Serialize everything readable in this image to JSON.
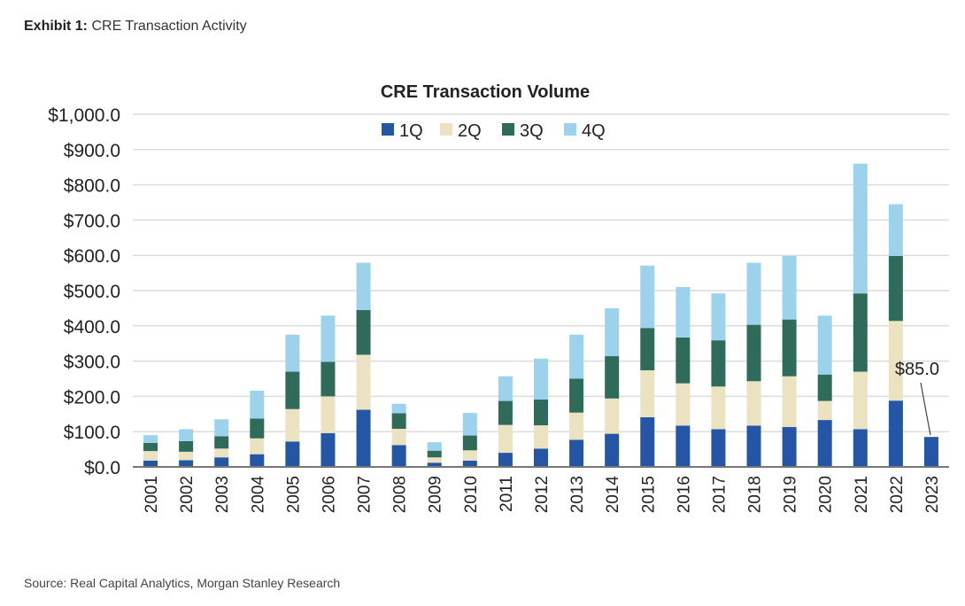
{
  "exhibit": {
    "label": "Exhibit 1:",
    "title": "CRE Transaction Activity"
  },
  "source": "Source: Real Capital Analytics, Morgan Stanley Research",
  "chart_data": {
    "type": "bar",
    "stacked": true,
    "title": "CRE Transaction Volume",
    "xlabel": "",
    "ylabel": "",
    "ylim": [
      0,
      1000
    ],
    "yticks": [
      0,
      100,
      200,
      300,
      400,
      500,
      600,
      700,
      800,
      900,
      1000
    ],
    "ytick_labels": [
      "$0.0",
      "$100.0",
      "$200.0",
      "$300.0",
      "$400.0",
      "$500.0",
      "$600.0",
      "$700.0",
      "$800.0",
      "$900.0",
      "$1,000.0"
    ],
    "grid": true,
    "legend": "top-center",
    "categories": [
      "2001",
      "2002",
      "2003",
      "2004",
      "2005",
      "2006",
      "2007",
      "2008",
      "2009",
      "2010",
      "2011",
      "2012",
      "2013",
      "2014",
      "2015",
      "2016",
      "2017",
      "2018",
      "2019",
      "2020",
      "2021",
      "2022",
      "2023"
    ],
    "series": [
      {
        "name": "1Q",
        "color": "#2456a6",
        "values": [
          18,
          19,
          27,
          36,
          72,
          96,
          162,
          62,
          12,
          18,
          40,
          52,
          77,
          94,
          141,
          117,
          107,
          117,
          113,
          133,
          107,
          188,
          85
        ]
      },
      {
        "name": "2Q",
        "color": "#ebe2c2",
        "values": [
          27,
          24,
          25,
          45,
          92,
          104,
          156,
          46,
          15,
          29,
          79,
          66,
          77,
          100,
          133,
          120,
          121,
          126,
          144,
          54,
          163,
          226,
          0
        ]
      },
      {
        "name": "3Q",
        "color": "#2f6b5a",
        "values": [
          23,
          30,
          35,
          56,
          106,
          98,
          127,
          44,
          19,
          42,
          68,
          73,
          96,
          120,
          120,
          130,
          131,
          160,
          161,
          75,
          222,
          184,
          0
        ]
      },
      {
        "name": "4Q",
        "color": "#9dd2ec",
        "values": [
          22,
          34,
          48,
          79,
          105,
          131,
          134,
          27,
          24,
          64,
          70,
          116,
          125,
          136,
          177,
          143,
          133,
          176,
          180,
          167,
          368,
          147,
          0
        ]
      }
    ],
    "annotations": [
      {
        "category": "2023",
        "text": "$85.0"
      }
    ]
  }
}
